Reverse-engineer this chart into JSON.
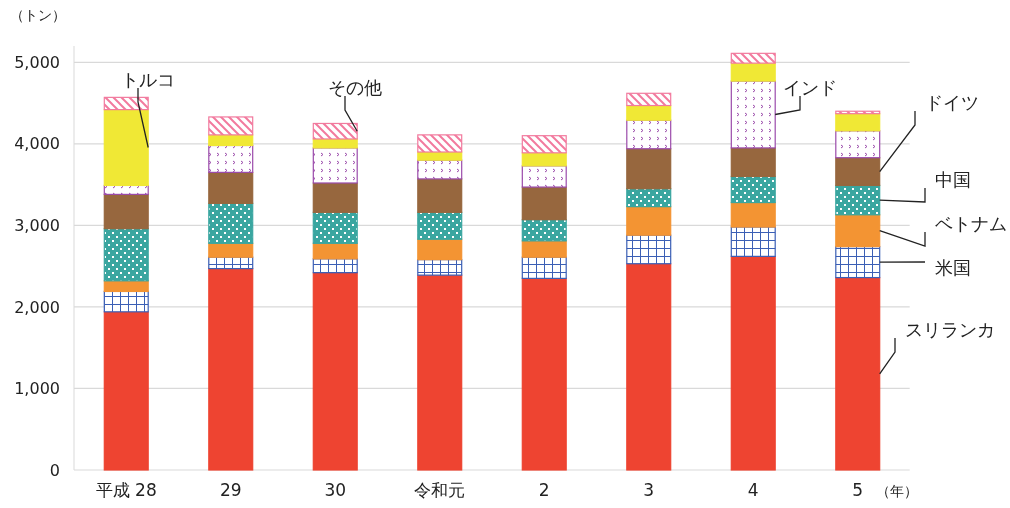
{
  "chart_data": {
    "type": "bar",
    "stacked": true,
    "ylabel": "（トン）",
    "xlabel": "（年）",
    "categories": [
      "平成 28",
      "29",
      "30",
      "令和元",
      "2",
      "3",
      "4",
      "5"
    ],
    "series": [
      {
        "name": "スリランカ",
        "color": "#ee4431",
        "values": [
          1940,
          2470,
          2420,
          2390,
          2350,
          2530,
          2620,
          2360
        ]
      },
      {
        "name": "米国",
        "color": "#3b5fb5",
        "values": [
          250,
          140,
          170,
          190,
          260,
          350,
          360,
          380
        ]
      },
      {
        "name": "ベトナム",
        "color": "#f39433",
        "values": [
          130,
          170,
          190,
          250,
          200,
          350,
          300,
          390
        ]
      },
      {
        "name": "中国",
        "color": "#3aa6a0",
        "values": [
          640,
          490,
          380,
          330,
          260,
          220,
          320,
          360
        ]
      },
      {
        "name": "ドイツ",
        "color": "#97673e",
        "values": [
          420,
          380,
          360,
          410,
          400,
          490,
          350,
          340
        ]
      },
      {
        "name": "インド",
        "color": "#9b4bab",
        "values": [
          110,
          330,
          430,
          230,
          260,
          350,
          820,
          330
        ]
      },
      {
        "name": "トルコ",
        "color": "#f0e835",
        "values": [
          930,
          130,
          110,
          100,
          160,
          180,
          220,
          210
        ]
      },
      {
        "name": "その他",
        "color": "#f27a9e",
        "values": [
          150,
          220,
          190,
          210,
          210,
          150,
          120,
          30
        ]
      }
    ],
    "ylim": [
      0,
      5200
    ],
    "yticks": [
      0,
      {
        "value": 1000,
        "label": "1,000"
      },
      {
        "value": 2000,
        "label": "2,000"
      },
      {
        "value": 3000,
        "label": "3,000"
      },
      {
        "value": 4000,
        "label": "4,000"
      },
      {
        "value": 5000,
        "label": "5,000"
      }
    ],
    "grid": "y"
  }
}
